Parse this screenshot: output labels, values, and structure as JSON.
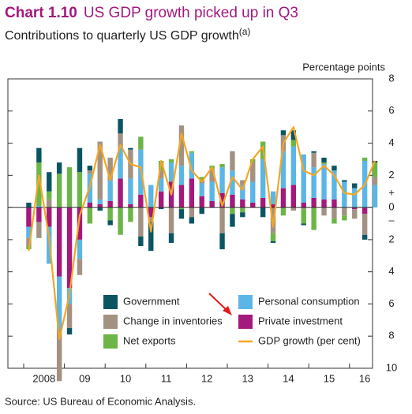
{
  "chart_data": {
    "type": "bar",
    "stacked": true,
    "title_label": "Chart 1.10",
    "title": "US GDP growth picked up in Q3",
    "subtitle": "Contributions to quarterly US GDP growth",
    "subtitle_note": "(a)",
    "y_axis_label": "Percentage points",
    "sign_labels": [
      "+",
      "–"
    ],
    "source": "Source:  US Bureau of Economic Analysis.",
    "categories": [
      "2008",
      null,
      null,
      null,
      "09",
      null,
      null,
      null,
      "10",
      null,
      null,
      null,
      "11",
      null,
      null,
      null,
      "12",
      null,
      null,
      null,
      "13",
      null,
      null,
      null,
      "14",
      null,
      null,
      null,
      "15",
      null,
      null,
      null,
      "16",
      null,
      null
    ],
    "ylim": [
      -10,
      8
    ],
    "yticks": [
      {
        "value": -10,
        "label": "10"
      },
      {
        "value": -8,
        "label": "8"
      },
      {
        "value": -6,
        "label": "6"
      },
      {
        "value": -4,
        "label": "4"
      },
      {
        "value": -2,
        "label": "2"
      },
      0,
      2,
      4,
      6,
      8
    ],
    "series": [
      {
        "name": "Government",
        "color": "#0b5563",
        "values": [
          0.3,
          0.9,
          1.2,
          0.7,
          -0.4,
          1.5,
          0.3,
          -0.2,
          -0.3,
          0.9,
          0.1,
          -0.6,
          -1.8,
          -0.1,
          -0.6,
          -0.6,
          -0.4,
          -0.4,
          0.0,
          -1.0,
          -0.8,
          -0.3,
          0.0,
          -0.6,
          -0.1,
          0.3,
          0.6,
          -0.1,
          0.1,
          0.3,
          0.3,
          0.1,
          0.3,
          -0.3,
          0.1
        ]
      },
      {
        "name": "Personal consumption",
        "color": "#5bb6e6",
        "values": [
          -0.7,
          0.1,
          -2.3,
          -3.3,
          -1.0,
          -1.2,
          1.8,
          0.3,
          1.3,
          2.0,
          1.6,
          2.8,
          1.4,
          0.8,
          1.2,
          1.2,
          1.6,
          0.8,
          1.2,
          1.6,
          1.5,
          0.9,
          1.3,
          2.4,
          0.8,
          2.3,
          2.4,
          3.0,
          1.9,
          2.2,
          1.8,
          1.6,
          1.2,
          2.9,
          1.4
        ]
      },
      {
        "name": "Change in inventories",
        "color": "#a39282",
        "values": [
          -0.5,
          -1.0,
          0.5,
          -3.2,
          -1.5,
          -1.0,
          0.2,
          3.6,
          1.4,
          0.8,
          1.8,
          -1.8,
          -0.3,
          0.5,
          -1.6,
          2.5,
          -0.6,
          0.2,
          0.8,
          -1.6,
          1.2,
          0.3,
          1.2,
          0.0,
          -1.6,
          1.0,
          -0.2,
          -0.1,
          0.9,
          -0.5,
          -0.7,
          -0.5,
          -0.6,
          -1.3,
          0.5
        ]
      },
      {
        "name": "Private investment",
        "color": "#a3197c",
        "values": [
          -1.2,
          -0.9,
          -1.2,
          -4.3,
          -5.0,
          -2.0,
          0.3,
          0.2,
          0.4,
          1.8,
          0.2,
          0.8,
          -0.6,
          1.0,
          1.6,
          1.4,
          1.8,
          0.7,
          0.4,
          0.9,
          0.8,
          0.5,
          0.3,
          0.6,
          0.2,
          1.2,
          1.4,
          0.3,
          0.6,
          0.5,
          0.5,
          0.0,
          -0.1,
          -0.4,
          0.0
        ]
      },
      {
        "name": "Net exports",
        "color": "#6cb548",
        "values": [
          -0.2,
          2.7,
          0.5,
          2.1,
          2.5,
          2.2,
          -1.0,
          0.0,
          -0.8,
          -1.7,
          -0.9,
          0.8,
          0.0,
          0.6,
          0.2,
          -0.1,
          0.1,
          0.2,
          0.2,
          0.2,
          -0.4,
          -0.3,
          0.2,
          1.1,
          -0.5,
          -0.5,
          0.4,
          -0.9,
          -1.4,
          0.1,
          -0.3,
          -0.3,
          0.0,
          0.2,
          0.9
        ]
      },
      {
        "name": "GDP growth (per cent)",
        "type": "line",
        "color": "#f5a623",
        "values": [
          -2.7,
          2.0,
          -1.9,
          -8.2,
          -5.4,
          -0.5,
          1.3,
          3.9,
          1.7,
          3.9,
          2.7,
          2.5,
          -1.5,
          2.9,
          0.8,
          4.6,
          2.3,
          1.6,
          2.5,
          0.1,
          1.9,
          1.1,
          3.0,
          3.8,
          -1.2,
          4.0,
          5.0,
          2.3,
          2.0,
          2.6,
          2.0,
          0.9,
          0.8,
          1.4,
          2.9
        ]
      }
    ]
  }
}
